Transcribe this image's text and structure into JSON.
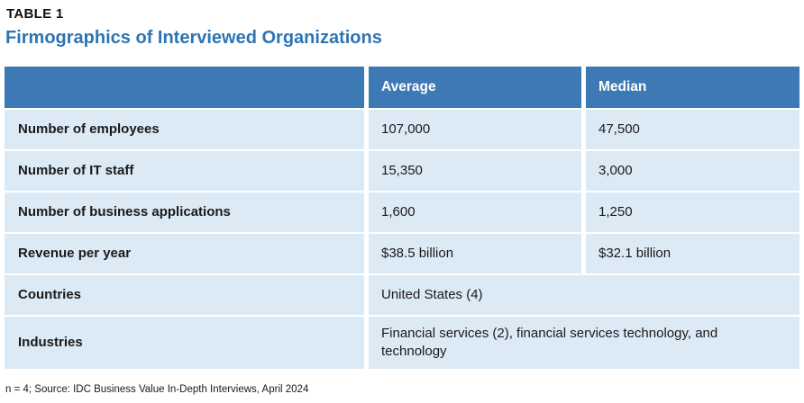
{
  "table_label": "TABLE 1",
  "title": "Firmographics of Interviewed Organizations",
  "colors": {
    "title_blue": "#2d74b5",
    "header_bg": "#3d79b4",
    "header_text": "#ffffff",
    "row_bg": "#dceaf6",
    "body_text": "#1a1a1a"
  },
  "columns": [
    "",
    "Average",
    "Median"
  ],
  "rows": [
    {
      "label": "Number of employees",
      "average": "107,000",
      "median": "47,500"
    },
    {
      "label": "Number of IT staff",
      "average": "15,350",
      "median": "3,000"
    },
    {
      "label": "Number of business applications",
      "average": "1,600",
      "median": "1,250"
    },
    {
      "label": "Revenue per year",
      "average": "$38.5 billion",
      "median": "$32.1 billion"
    },
    {
      "label": "Countries",
      "value": "United States (4)",
      "span": true
    },
    {
      "label": "Industries",
      "value": "Financial services (2), financial services technology, and technology",
      "span": true
    }
  ],
  "footnote": "n = 4; Source: IDC Business Value In-Depth Interviews, April 2024"
}
